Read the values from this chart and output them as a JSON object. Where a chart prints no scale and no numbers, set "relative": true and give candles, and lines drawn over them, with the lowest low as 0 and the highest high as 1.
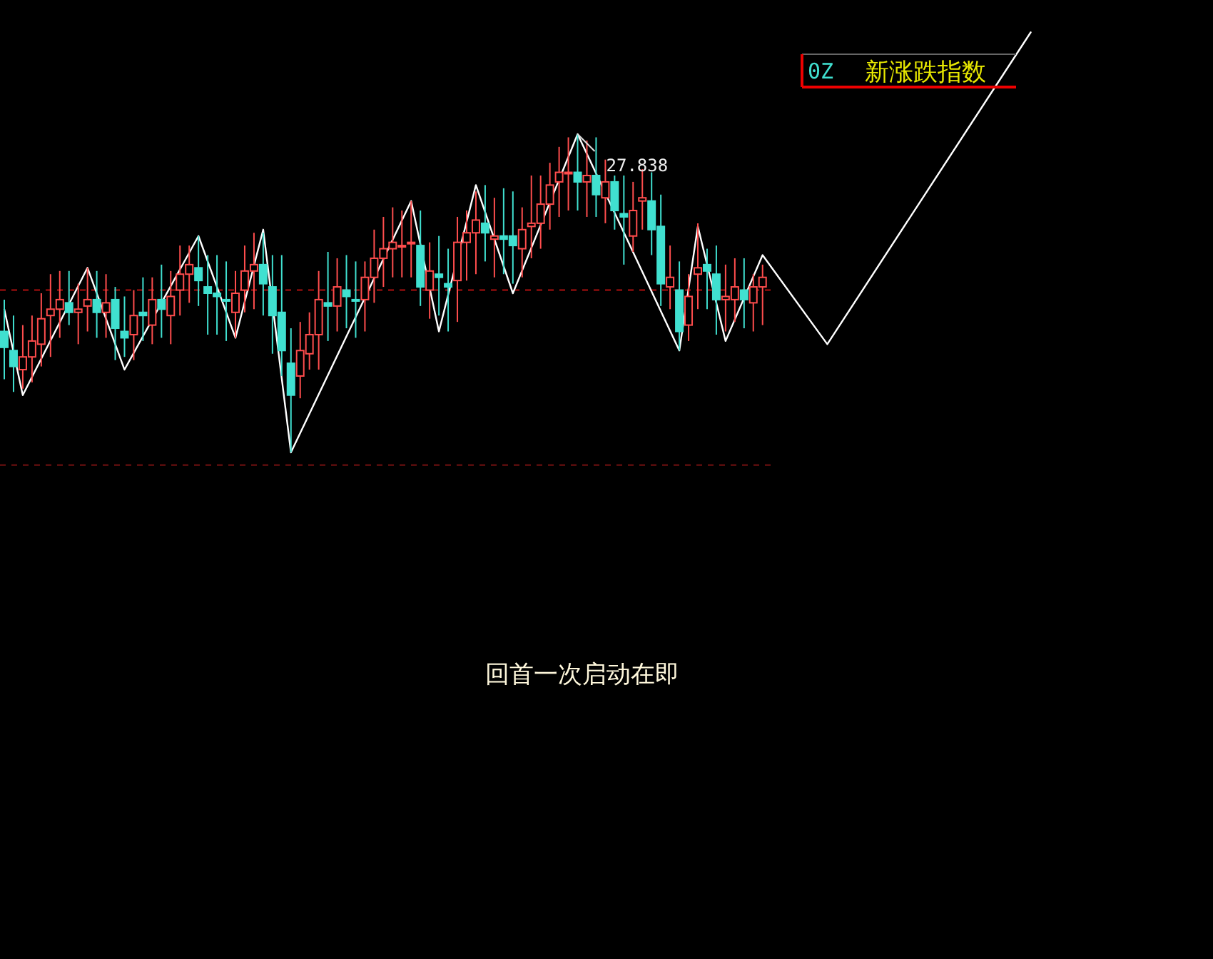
{
  "chart_data": {
    "type": "candlestick",
    "relative": true,
    "title": "新涨跌指数",
    "subtitle": "0Z",
    "annotations": [
      "回首一次启动在即",
      "27.838"
    ],
    "categories": [
      null,
      null,
      null,
      null,
      null,
      null,
      null,
      null,
      null,
      null,
      null,
      null,
      null,
      null,
      null,
      null,
      null,
      null,
      null,
      null,
      null,
      null,
      null,
      null,
      null,
      null,
      null,
      null,
      null,
      null,
      null,
      null,
      null,
      null,
      null,
      null,
      null,
      null,
      null,
      null,
      null,
      null,
      null,
      null,
      null,
      null,
      null,
      null,
      null,
      null,
      null,
      null,
      null,
      null,
      null,
      null,
      null,
      null,
      null,
      null,
      null,
      null,
      null,
      null,
      null,
      null,
      null,
      null,
      null,
      null,
      null,
      null,
      null,
      null,
      null,
      null,
      null,
      null,
      null,
      null,
      null,
      null,
      null,
      null,
      null,
      null,
      null,
      null,
      null,
      null,
      null,
      null,
      null,
      null,
      null,
      null,
      null,
      null,
      null,
      null,
      null,
      null,
      null,
      null,
      null,
      null,
      null,
      null,
      null,
      null,
      null,
      null
    ],
    "ohlc": [
      [
        0.38,
        0.48,
        0.23,
        0.33
      ],
      [
        0.32,
        0.43,
        0.19,
        0.27
      ],
      [
        0.26,
        0.4,
        0.2,
        0.3
      ],
      [
        0.3,
        0.43,
        0.22,
        0.35
      ],
      [
        0.34,
        0.5,
        0.27,
        0.42
      ],
      [
        0.43,
        0.56,
        0.3,
        0.45
      ],
      [
        0.45,
        0.57,
        0.36,
        0.48
      ],
      [
        0.47,
        0.57,
        0.4,
        0.44
      ],
      [
        0.44,
        0.53,
        0.34,
        0.45
      ],
      [
        0.46,
        0.58,
        0.38,
        0.48
      ],
      [
        0.48,
        0.57,
        0.36,
        0.44
      ],
      [
        0.44,
        0.56,
        0.36,
        0.47
      ],
      [
        0.48,
        0.52,
        0.29,
        0.39
      ],
      [
        0.38,
        0.49,
        0.3,
        0.36
      ],
      [
        0.37,
        0.51,
        0.29,
        0.43
      ],
      [
        0.44,
        0.55,
        0.35,
        0.43
      ],
      [
        0.4,
        0.55,
        0.34,
        0.48
      ],
      [
        0.48,
        0.59,
        0.36,
        0.45
      ],
      [
        0.43,
        0.57,
        0.34,
        0.49
      ],
      [
        0.51,
        0.65,
        0.43,
        0.56
      ],
      [
        0.56,
        0.65,
        0.47,
        0.59
      ],
      [
        0.58,
        0.68,
        0.46,
        0.54
      ],
      [
        0.52,
        0.62,
        0.37,
        0.5
      ],
      [
        0.5,
        0.62,
        0.37,
        0.49
      ],
      [
        0.48,
        0.6,
        0.35,
        0.48
      ],
      [
        0.44,
        0.57,
        0.36,
        0.5
      ],
      [
        0.51,
        0.65,
        0.44,
        0.57
      ],
      [
        0.57,
        0.69,
        0.45,
        0.59
      ],
      [
        0.59,
        0.69,
        0.43,
        0.53
      ],
      [
        0.52,
        0.62,
        0.31,
        0.43
      ],
      [
        0.44,
        0.62,
        0.24,
        0.32
      ],
      [
        0.28,
        0.39,
        0.0,
        0.18
      ],
      [
        0.24,
        0.41,
        0.17,
        0.32
      ],
      [
        0.31,
        0.44,
        0.26,
        0.37
      ],
      [
        0.37,
        0.57,
        0.26,
        0.48
      ],
      [
        0.47,
        0.63,
        0.35,
        0.46
      ],
      [
        0.46,
        0.61,
        0.38,
        0.52
      ],
      [
        0.51,
        0.62,
        0.39,
        0.49
      ],
      [
        0.48,
        0.6,
        0.36,
        0.48
      ],
      [
        0.48,
        0.6,
        0.38,
        0.55
      ],
      [
        0.55,
        0.7,
        0.47,
        0.61
      ],
      [
        0.61,
        0.74,
        0.52,
        0.64
      ],
      [
        0.64,
        0.77,
        0.55,
        0.66
      ],
      [
        0.65,
        0.76,
        0.55,
        0.65
      ],
      [
        0.66,
        0.79,
        0.55,
        0.66
      ],
      [
        0.65,
        0.76,
        0.46,
        0.52
      ],
      [
        0.51,
        0.66,
        0.42,
        0.57
      ],
      [
        0.56,
        0.68,
        0.43,
        0.55
      ],
      [
        0.53,
        0.64,
        0.38,
        0.52
      ],
      [
        0.54,
        0.74,
        0.41,
        0.66
      ],
      [
        0.66,
        0.76,
        0.54,
        0.69
      ],
      [
        0.69,
        0.82,
        0.56,
        0.73
      ],
      [
        0.72,
        0.84,
        0.6,
        0.69
      ],
      [
        0.67,
        0.8,
        0.55,
        0.68
      ],
      [
        0.68,
        0.83,
        0.56,
        0.67
      ],
      [
        0.68,
        0.82,
        0.53,
        0.65
      ],
      [
        0.64,
        0.77,
        0.55,
        0.7
      ],
      [
        0.71,
        0.87,
        0.61,
        0.72
      ],
      [
        0.72,
        0.87,
        0.64,
        0.78
      ],
      [
        0.78,
        0.91,
        0.7,
        0.84
      ],
      [
        0.85,
        0.96,
        0.74,
        0.88
      ],
      [
        0.88,
        0.99,
        0.76,
        0.88
      ],
      [
        0.88,
        1.0,
        0.76,
        0.85
      ],
      [
        0.85,
        0.98,
        0.74,
        0.87
      ],
      [
        0.87,
        0.99,
        0.74,
        0.81
      ],
      [
        0.8,
        0.92,
        0.72,
        0.85
      ],
      [
        0.85,
        0.87,
        0.7,
        0.76
      ],
      [
        0.75,
        0.87,
        0.59,
        0.74
      ],
      [
        0.68,
        0.85,
        0.63,
        0.76
      ],
      [
        0.79,
        0.89,
        0.7,
        0.8
      ],
      [
        0.79,
        0.88,
        0.62,
        0.7
      ],
      [
        0.71,
        0.81,
        0.46,
        0.53
      ],
      [
        0.52,
        0.65,
        0.45,
        0.55
      ],
      [
        0.51,
        0.6,
        0.32,
        0.38
      ],
      [
        0.4,
        0.56,
        0.35,
        0.49
      ],
      [
        0.56,
        0.72,
        0.45,
        0.58
      ],
      [
        0.59,
        0.64,
        0.45,
        0.57
      ],
      [
        0.56,
        0.65,
        0.37,
        0.48
      ],
      [
        0.48,
        0.59,
        0.38,
        0.49
      ],
      [
        0.48,
        0.61,
        0.41,
        0.52
      ],
      [
        0.51,
        0.61,
        0.39,
        0.48
      ],
      [
        0.47,
        0.56,
        0.38,
        0.52
      ],
      [
        0.52,
        0.59,
        0.4,
        0.55
      ],
      null,
      null,
      null,
      null,
      null,
      null,
      null,
      null,
      null,
      null,
      null,
      null,
      null,
      null,
      null,
      null,
      null,
      null,
      null,
      null,
      null,
      null,
      null,
      null,
      null,
      null,
      null,
      null,
      null
    ],
    "colors": [
      "#40e0d0",
      "#40e0d0",
      "#ff4d4d",
      "#ff4d4d",
      "#ff4d4d",
      "#ff4d4d",
      "#ff4d4d",
      "#40e0d0",
      "#ff4d4d",
      "#ff4d4d",
      "#40e0d0",
      "#ff4d4d",
      "#40e0d0",
      "#40e0d0",
      "#ff4d4d",
      "#40e0d0",
      "#ff4d4d",
      "#40e0d0",
      "#ff4d4d",
      "#ff4d4d",
      "#ff4d4d",
      "#40e0d0",
      "#40e0d0",
      "#40e0d0",
      "#40e0d0",
      "#ff4d4d",
      "#ff4d4d",
      "#ff4d4d",
      "#40e0d0",
      "#40e0d0",
      "#40e0d0",
      "#40e0d0",
      "#ff4d4d",
      "#ff4d4d",
      "#ff4d4d",
      "#40e0d0",
      "#ff4d4d",
      "#40e0d0",
      "#40e0d0",
      "#ff4d4d",
      "#ff4d4d",
      "#ff4d4d",
      "#ff4d4d",
      "#ff4d4d",
      "#ff4d4d",
      "#40e0d0",
      "#ff4d4d",
      "#40e0d0",
      "#40e0d0",
      "#ff4d4d",
      "#ff4d4d",
      "#ff4d4d",
      "#40e0d0",
      "#ff4d4d",
      "#40e0d0",
      "#40e0d0",
      "#ff4d4d",
      "#ff4d4d",
      "#ff4d4d",
      "#ff4d4d",
      "#ff4d4d",
      "#ff4d4d",
      "#40e0d0",
      "#ff4d4d",
      "#40e0d0",
      "#ff4d4d",
      "#40e0d0",
      "#40e0d0",
      "#ff4d4d",
      "#ff4d4d",
      "#40e0d0",
      "#40e0d0",
      "#ff4d4d",
      "#40e0d0",
      "#ff4d4d",
      "#ff4d4d",
      "#40e0d0",
      "#40e0d0",
      "#ff4d4d",
      "#ff4d4d",
      "#40e0d0",
      "#ff4d4d",
      "#ff4d4d",
      null,
      null,
      null,
      null,
      null,
      null,
      null,
      null,
      null,
      null,
      null,
      null,
      null,
      null,
      null,
      null,
      null,
      null,
      null,
      null,
      null,
      null,
      null,
      null,
      null,
      null,
      null,
      null,
      null
    ],
    "series": [
      {
        "type": "line",
        "color": "#ffffff",
        "values": [
          0.45,
          null,
          0.18,
          null,
          null,
          null,
          null,
          null,
          null,
          0.58,
          null,
          null,
          null,
          0.26,
          null,
          null,
          null,
          null,
          null,
          null,
          null,
          0.68,
          null,
          null,
          null,
          0.36,
          null,
          null,
          0.7,
          null,
          null,
          0.0,
          null,
          null,
          null,
          null,
          null,
          null,
          null,
          null,
          null,
          null,
          null,
          null,
          0.79,
          null,
          null,
          0.38,
          null,
          null,
          null,
          0.84,
          null,
          null,
          null,
          0.5,
          null,
          null,
          null,
          null,
          null,
          null,
          1.0,
          null,
          null,
          null,
          null,
          null,
          null,
          null,
          null,
          null,
          null,
          0.32,
          null,
          0.71,
          null,
          null,
          0.35,
          null,
          null,
          null,
          0.62,
          null,
          null,
          null,
          null,
          null,
          null,
          0.34,
          null,
          null,
          null,
          null,
          null,
          null,
          null,
          null,
          null,
          null,
          null,
          null,
          null,
          null,
          null,
          null,
          null,
          null,
          null,
          null,
          null,
          1.32
        ]
      }
    ],
    "ref_lines": [
      {
        "axis": "y",
        "value": 0.51,
        "color": "#b01010",
        "line_style": "dashed"
      },
      {
        "axis": "y",
        "value": -0.04,
        "color": "#701010",
        "line_style": "dashed"
      }
    ]
  }
}
